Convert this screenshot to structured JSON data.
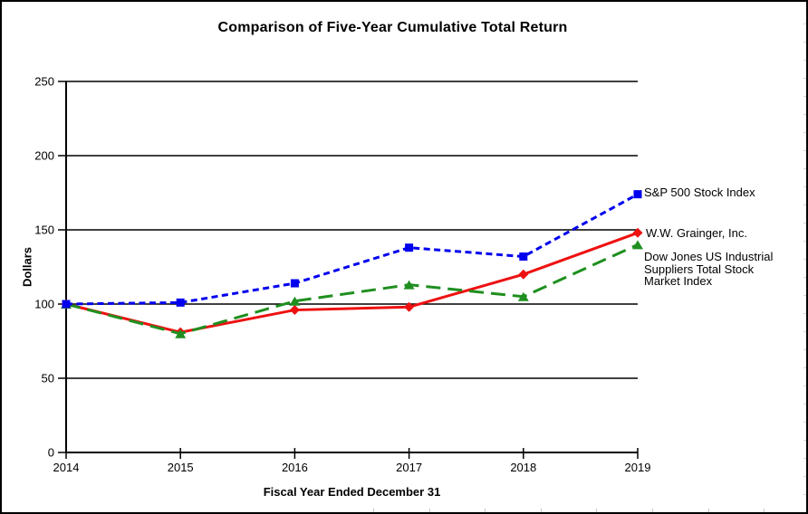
{
  "window": {
    "background_color": "#FFFFFF",
    "border_color": "#000000"
  },
  "chart_data": {
    "type": "line",
    "title": "Comparison of Five-Year Cumulative Total Return",
    "xlabel": "Fiscal Year Ended December 31",
    "ylabel": "Dollars",
    "x": [
      "2014",
      "2015",
      "2016",
      "2017",
      "2018",
      "2019"
    ],
    "ylim": [
      0,
      250
    ],
    "yticks": [
      0,
      50,
      100,
      150,
      200,
      250
    ],
    "grid": "horizontal black gridlines every 50",
    "legend_position": "right of last data points",
    "series": [
      {
        "name": "S&P 500 Stock Index",
        "values": [
          100,
          101,
          114,
          138,
          132,
          174
        ],
        "color": "#0000EE",
        "line_style": "dash",
        "marker": "square"
      },
      {
        "name": "W.W. Grainger, Inc.",
        "values": [
          100,
          81,
          96,
          98,
          120,
          148
        ],
        "color": "#EE1111",
        "line_style": "solid",
        "marker": "diamond"
      },
      {
        "name": "Dow Jones US Industrial Suppliers Total Stock Market Index",
        "values": [
          100,
          80,
          102,
          113,
          105,
          140
        ],
        "color": "#1F8F1F",
        "line_style": "long-dash",
        "marker": "triangle"
      }
    ]
  }
}
